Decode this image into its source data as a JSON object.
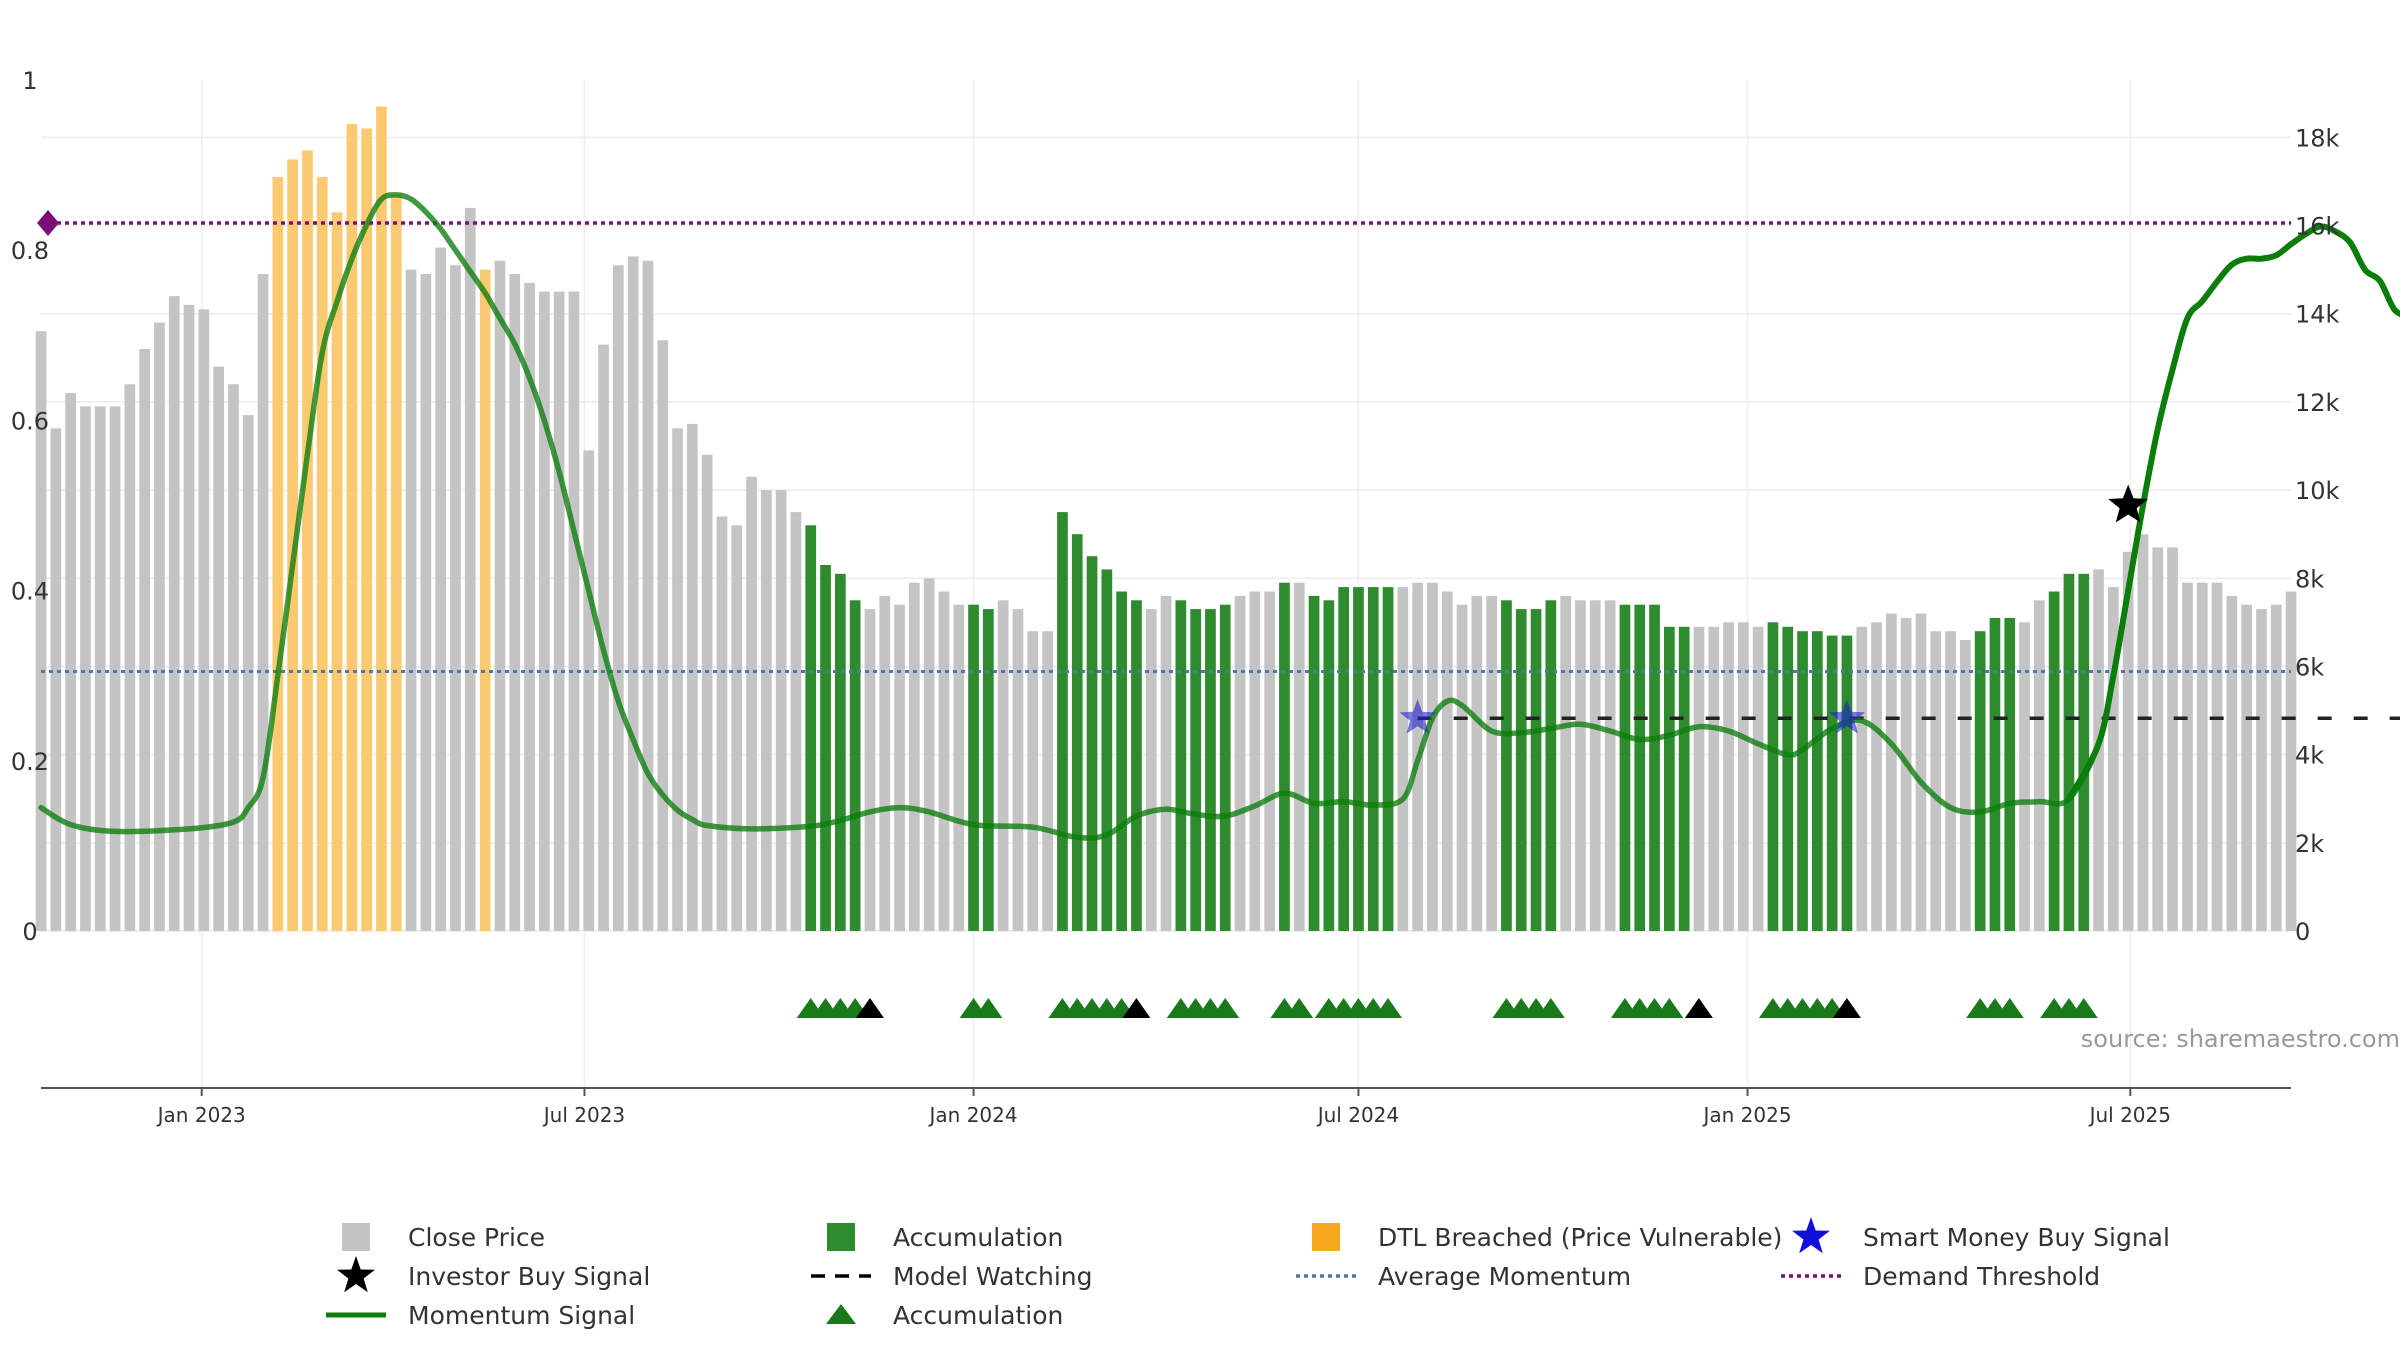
{
  "chart_data": {
    "type": "bar",
    "source": "source: sharemaestro.com",
    "colors": {
      "close_price": "#c4c4c4",
      "accumulation": "#2e8b2e",
      "dtl_breached": "#fbc970",
      "momentum": "#0b7d0b",
      "average_momentum": "#4a7aa6",
      "demand_threshold": "#7a0f7a",
      "model_watching": "#222222",
      "smart_money": "#2222cc",
      "investor_buy": "#000000",
      "accum_marker": "#1a7a1a"
    },
    "x_start": "2022-10-17",
    "x_end": "2025-09-15",
    "x_ticks": [
      {
        "date": "2023-01-01",
        "label": "Jan 2023"
      },
      {
        "date": "2023-07-01",
        "label": "Jul 2023"
      },
      {
        "date": "2024-01-01",
        "label": "Jan 2024"
      },
      {
        "date": "2024-07-01",
        "label": "Jul 2024"
      },
      {
        "date": "2025-01-01",
        "label": "Jan 2025"
      },
      {
        "date": "2025-07-01",
        "label": "Jul 2025"
      }
    ],
    "y_left": {
      "range": [
        0,
        1
      ],
      "ticks": [
        0,
        0.2,
        0.4,
        0.6,
        0.8,
        1
      ],
      "tick_labels": [
        "0",
        "0.2",
        "0.4",
        "0.6",
        "0.8",
        "1"
      ]
    },
    "y_right": {
      "range": [
        0,
        19300
      ],
      "ticks": [
        0,
        2000,
        4000,
        6000,
        8000,
        10000,
        12000,
        14000,
        16000,
        18000
      ],
      "tick_labels": [
        "0",
        "2k",
        "4k",
        "6k",
        "8k",
        "10k",
        "12k",
        "14k",
        "16k",
        "18k"
      ]
    },
    "grid": true,
    "bars": {
      "start": "2022-10-17",
      "interval_days": 7,
      "values": [
        13600,
        11400,
        12200,
        11900,
        11900,
        11900,
        12400,
        13200,
        13800,
        14400,
        14200,
        14100,
        12800,
        12400,
        11700,
        14900,
        17100,
        17500,
        17700,
        17100,
        16300,
        18300,
        18200,
        18700,
        16700,
        15000,
        14900,
        15500,
        15100,
        16400,
        15000,
        15200,
        14900,
        14700,
        14500,
        14500,
        14500,
        10900,
        13300,
        15100,
        15300,
        15200,
        13400,
        11400,
        11500,
        10800,
        9400,
        9200,
        10300,
        10000,
        10000,
        9500,
        9200,
        8300,
        8100,
        7500,
        7300,
        7600,
        7400,
        7900,
        8000,
        7700,
        7400,
        7400,
        7300,
        7500,
        7300,
        6800,
        6800,
        9500,
        9000,
        8500,
        8200,
        7700,
        7500,
        7300,
        7600,
        7500,
        7300,
        7300,
        7400,
        7600,
        7700,
        7700,
        7900,
        7900,
        7600,
        7500,
        7800,
        7800,
        7800,
        7800,
        7800,
        7900,
        7900,
        7700,
        7400,
        7600,
        7600,
        7500,
        7300,
        7300,
        7500,
        7600,
        7500,
        7500,
        7500,
        7400,
        7400,
        7400,
        6900,
        6900,
        6900,
        6900,
        7000,
        7000,
        6900,
        7000,
        6900,
        6800,
        6800,
        6700,
        6700,
        6900,
        7000,
        7200,
        7100,
        7200,
        6800,
        6800,
        6600,
        6800,
        7100,
        7100,
        7000,
        7500,
        7700,
        8100,
        8100,
        8200,
        7800,
        8600,
        9000,
        8700,
        8700,
        7900,
        7900,
        7900,
        7600,
        7400,
        7300,
        7400,
        7700
      ],
      "accumulation_ranges": [
        [
          52,
          55
        ],
        [
          63,
          64
        ],
        [
          69,
          74
        ],
        [
          77,
          80
        ],
        [
          84,
          84
        ],
        [
          86,
          91
        ],
        [
          99,
          102
        ],
        [
          107,
          111
        ],
        [
          117,
          122
        ],
        [
          131,
          133
        ],
        [
          136,
          138
        ]
      ],
      "dtl_ranges": [
        [
          16,
          24
        ],
        [
          30,
          30
        ]
      ]
    },
    "series": [
      {
        "name": "Momentum Signal",
        "points": [
          [
            0,
            0.145
          ],
          [
            2,
            0.125
          ],
          [
            5,
            0.117
          ],
          [
            10,
            0.12
          ],
          [
            13,
            0.128
          ],
          [
            14,
            0.145
          ],
          [
            15,
            0.18
          ],
          [
            16,
            0.3
          ],
          [
            17,
            0.43
          ],
          [
            18,
            0.56
          ],
          [
            19,
            0.68
          ],
          [
            20,
            0.74
          ],
          [
            21,
            0.79
          ],
          [
            22,
            0.83
          ],
          [
            23,
            0.86
          ],
          [
            24,
            0.865
          ],
          [
            25,
            0.86
          ],
          [
            26,
            0.845
          ],
          [
            27,
            0.825
          ],
          [
            28,
            0.8
          ],
          [
            29,
            0.775
          ],
          [
            30,
            0.75
          ],
          [
            31,
            0.72
          ],
          [
            32,
            0.69
          ],
          [
            33,
            0.65
          ],
          [
            34,
            0.6
          ],
          [
            35,
            0.54
          ],
          [
            36,
            0.47
          ],
          [
            37,
            0.4
          ],
          [
            38,
            0.33
          ],
          [
            39,
            0.27
          ],
          [
            40,
            0.225
          ],
          [
            41,
            0.185
          ],
          [
            42,
            0.16
          ],
          [
            43,
            0.142
          ],
          [
            44,
            0.131
          ],
          [
            45,
            0.124
          ],
          [
            48,
            0.12
          ],
          [
            52,
            0.123
          ],
          [
            54,
            0.13
          ],
          [
            56,
            0.14
          ],
          [
            58,
            0.145
          ],
          [
            60,
            0.14
          ],
          [
            63,
            0.125
          ],
          [
            67,
            0.122
          ],
          [
            70,
            0.11
          ],
          [
            72,
            0.113
          ],
          [
            74,
            0.135
          ],
          [
            76,
            0.143
          ],
          [
            78,
            0.137
          ],
          [
            80,
            0.135
          ],
          [
            82,
            0.147
          ],
          [
            84,
            0.162
          ],
          [
            86,
            0.15
          ],
          [
            88,
            0.152
          ],
          [
            90,
            0.148
          ],
          [
            92,
            0.155
          ],
          [
            93,
            0.2
          ],
          [
            94,
            0.25
          ],
          [
            95,
            0.27
          ],
          [
            96,
            0.265
          ],
          [
            98,
            0.235
          ],
          [
            100,
            0.233
          ],
          [
            102,
            0.238
          ],
          [
            104,
            0.243
          ],
          [
            106,
            0.235
          ],
          [
            108,
            0.225
          ],
          [
            110,
            0.23
          ],
          [
            112,
            0.24
          ],
          [
            114,
            0.235
          ],
          [
            116,
            0.22
          ],
          [
            118,
            0.207
          ],
          [
            119,
            0.213
          ],
          [
            121,
            0.238
          ],
          [
            123,
            0.247
          ],
          [
            125,
            0.22
          ],
          [
            127,
            0.175
          ],
          [
            129,
            0.145
          ],
          [
            131,
            0.14
          ],
          [
            133,
            0.15
          ],
          [
            135,
            0.152
          ],
          [
            137,
            0.155
          ],
          [
            139,
            0.22
          ],
          [
            140,
            0.3
          ],
          [
            141,
            0.4
          ],
          [
            142,
            0.5
          ],
          [
            143,
            0.59
          ],
          [
            144,
            0.66
          ],
          [
            145,
            0.72
          ],
          [
            146,
            0.74
          ],
          [
            147,
            0.763
          ],
          [
            148,
            0.783
          ],
          [
            149,
            0.79
          ],
          [
            150,
            0.79
          ],
          [
            151,
            0.794
          ],
          [
            152,
            0.807
          ],
          [
            153,
            0.819
          ],
          [
            154,
            0.828
          ],
          [
            155,
            0.822
          ],
          [
            156,
            0.809
          ],
          [
            157,
            0.777
          ],
          [
            158,
            0.764
          ],
          [
            159,
            0.73
          ],
          [
            160,
            0.722
          ]
        ]
      },
      {
        "name": "Average Momentum",
        "value": 0.305
      },
      {
        "name": "Demand Threshold",
        "value": 0.832
      },
      {
        "name": "Model Watching",
        "value": 0.25,
        "from_bar": 93,
        "to_bar": 160
      },
      {
        "name": "Smart Money Buy Signal",
        "points": [
          [
            93,
            0.25
          ],
          [
            122,
            0.25
          ]
        ]
      },
      {
        "name": "Investor Buy Signal",
        "points": [
          [
            141,
            0.5
          ]
        ]
      },
      {
        "name": "Accumulation",
        "markers": {
          "green": [
            52,
            53,
            54,
            55,
            63,
            64,
            69,
            70,
            71,
            72,
            73,
            77,
            78,
            79,
            80,
            84,
            85,
            87,
            88,
            89,
            90,
            91,
            99,
            100,
            101,
            102,
            107,
            108,
            109,
            110,
            117,
            118,
            119,
            120,
            121,
            131,
            132,
            133,
            136,
            137,
            138
          ],
          "black": [
            56,
            74,
            112,
            122
          ]
        }
      }
    ],
    "legend": {
      "placement": "bottom",
      "items": [
        {
          "label": "Close Price",
          "symbol": "square-gray"
        },
        {
          "label": "Accumulation",
          "symbol": "square-green"
        },
        {
          "label": "DTL Breached (Price Vulnerable)",
          "symbol": "square-orange"
        },
        {
          "label": "Smart Money Buy Signal",
          "symbol": "star-blue"
        },
        {
          "label": "Investor Buy Signal",
          "symbol": "star-black"
        },
        {
          "label": "Model Watching",
          "symbol": "dash-black"
        },
        {
          "label": "Average Momentum",
          "symbol": "dot-blue"
        },
        {
          "label": "Demand Threshold",
          "symbol": "dot-purple"
        },
        {
          "label": "Momentum Signal",
          "symbol": "line-green"
        },
        {
          "label": "Accumulation",
          "symbol": "triangle-green"
        }
      ]
    }
  }
}
